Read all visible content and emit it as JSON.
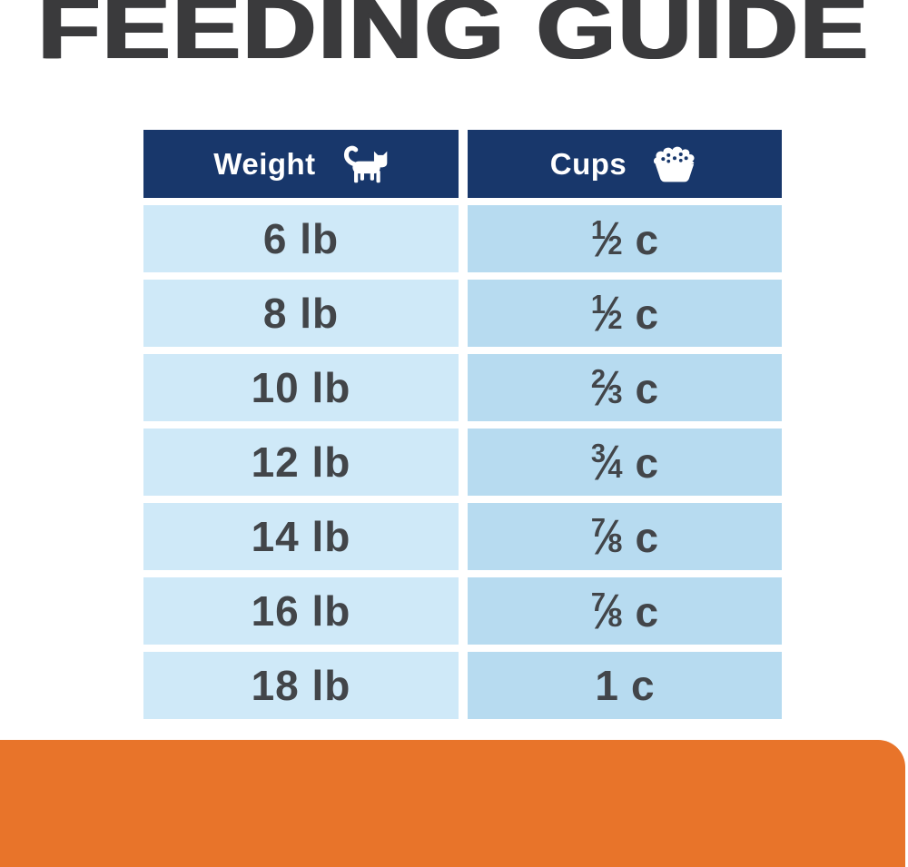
{
  "title": "FEEDING GUIDE",
  "colors": {
    "header_navy": "#18376b",
    "row_blue_left": "#cfe9f8",
    "row_blue_right": "#b7dbf0",
    "accent_orange": "#e8742a",
    "title_gray": "#3a3a3c",
    "cell_text": "#424549"
  },
  "glyphs": {
    "fraction_slash": "⁄"
  },
  "table": {
    "columns": [
      {
        "label": "Weight",
        "icon": "cat-icon"
      },
      {
        "label": "Cups",
        "icon": "food-bowl-icon"
      }
    ],
    "rows": [
      {
        "weight": "6 lb",
        "cups": {
          "num": "1",
          "den": "2"
        },
        "unit": "c"
      },
      {
        "weight": "8 lb",
        "cups": {
          "num": "1",
          "den": "2"
        },
        "unit": "c"
      },
      {
        "weight": "10 lb",
        "cups": {
          "num": "2",
          "den": "3"
        },
        "unit": "c"
      },
      {
        "weight": "12 lb",
        "cups": {
          "num": "3",
          "den": "4"
        },
        "unit": "c"
      },
      {
        "weight": "14 lb",
        "cups": {
          "num": "7",
          "den": "8"
        },
        "unit": "c"
      },
      {
        "weight": "16 lb",
        "cups": {
          "num": "7",
          "den": "8"
        },
        "unit": "c"
      },
      {
        "weight": "18 lb",
        "cups": {
          "whole": "1"
        },
        "unit": "c"
      }
    ]
  }
}
